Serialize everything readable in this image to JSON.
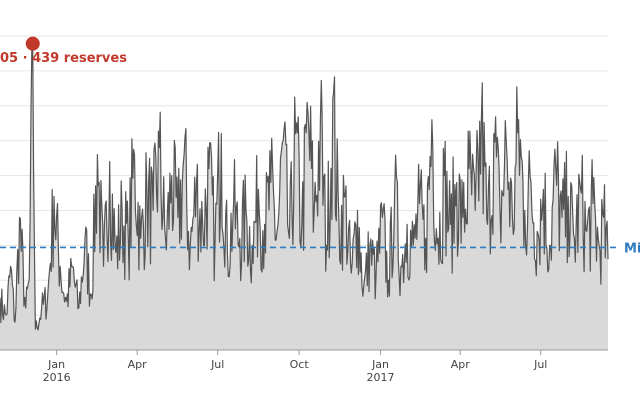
{
  "chart_data": {
    "type": "area",
    "title": "",
    "xlabel": "",
    "ylabel": "",
    "x_range": [
      "2015-10-29",
      "2017-09-15"
    ],
    "y_range": [
      0,
      450
    ],
    "grid": "horizontal",
    "colors": {
      "line": "#555555",
      "fill": "#d9d9d9",
      "grid": "#e6e6e6",
      "reference": "#2f7bbf",
      "peak": "#c0392b"
    },
    "x_ticks": [
      {
        "date": "2016-01-01",
        "label": "Jan",
        "sublabel": "2016"
      },
      {
        "date": "2016-04-01",
        "label": "Apr",
        "sublabel": ""
      },
      {
        "date": "2016-07-01",
        "label": "Jul",
        "sublabel": ""
      },
      {
        "date": "2016-10-01",
        "label": "Oct",
        "sublabel": ""
      },
      {
        "date": "2017-01-01",
        "label": "Jan",
        "sublabel": "2017"
      },
      {
        "date": "2017-04-01",
        "label": "Apr",
        "sublabel": ""
      },
      {
        "date": "2017-07-01",
        "label": "Jul",
        "sublabel": ""
      }
    ],
    "reference_line": {
      "value": 147,
      "label": "Mi"
    },
    "peak": {
      "date": "2015-12-05",
      "value": 439,
      "label": "05 · 439 reserves"
    },
    "series": [
      {
        "name": "",
        "points": [
          [
            "2015-10-29",
            75
          ],
          [
            "2015-11-05",
            50
          ],
          [
            "2015-11-10",
            120
          ],
          [
            "2015-11-15",
            40
          ],
          [
            "2015-11-20",
            190
          ],
          [
            "2015-11-27",
            60
          ],
          [
            "2015-12-01",
            100
          ],
          [
            "2015-12-05",
            439
          ],
          [
            "2015-12-08",
            30
          ],
          [
            "2015-12-15",
            60
          ],
          [
            "2015-12-22",
            80
          ],
          [
            "2015-12-29",
            220
          ],
          [
            "2016-01-05",
            120
          ],
          [
            "2016-01-12",
            70
          ],
          [
            "2016-01-19",
            120
          ],
          [
            "2016-01-26",
            60
          ],
          [
            "2016-02-02",
            160
          ],
          [
            "2016-02-09",
            80
          ],
          [
            "2016-02-16",
            280
          ],
          [
            "2016-02-23",
            120
          ],
          [
            "2016-03-01",
            270
          ],
          [
            "2016-03-08",
            140
          ],
          [
            "2016-03-15",
            200
          ],
          [
            "2016-03-22",
            160
          ],
          [
            "2016-03-29",
            280
          ],
          [
            "2016-04-05",
            160
          ],
          [
            "2016-04-12",
            230
          ],
          [
            "2016-04-19",
            200
          ],
          [
            "2016-04-26",
            290
          ],
          [
            "2016-05-03",
            160
          ],
          [
            "2016-05-10",
            250
          ],
          [
            "2016-05-17",
            190
          ],
          [
            "2016-05-24",
            280
          ],
          [
            "2016-05-31",
            150
          ],
          [
            "2016-06-07",
            240
          ],
          [
            "2016-06-14",
            180
          ],
          [
            "2016-06-21",
            260
          ],
          [
            "2016-06-28",
            160
          ],
          [
            "2016-07-05",
            310
          ],
          [
            "2016-07-12",
            140
          ],
          [
            "2016-07-19",
            210
          ],
          [
            "2016-07-26",
            160
          ],
          [
            "2016-08-02",
            200
          ],
          [
            "2016-08-09",
            150
          ],
          [
            "2016-08-16",
            230
          ],
          [
            "2016-08-23",
            180
          ],
          [
            "2016-08-30",
            240
          ],
          [
            "2016-09-06",
            170
          ],
          [
            "2016-09-13",
            300
          ],
          [
            "2016-09-20",
            160
          ],
          [
            "2016-09-27",
            310
          ],
          [
            "2016-10-04",
            180
          ],
          [
            "2016-10-11",
            340
          ],
          [
            "2016-10-18",
            200
          ],
          [
            "2016-10-25",
            330
          ],
          [
            "2016-11-01",
            150
          ],
          [
            "2016-11-08",
            360
          ],
          [
            "2016-11-15",
            180
          ],
          [
            "2016-11-22",
            220
          ],
          [
            "2016-11-29",
            110
          ],
          [
            "2016-12-06",
            200
          ],
          [
            "2016-12-13",
            90
          ],
          [
            "2016-12-20",
            150
          ],
          [
            "2016-12-27",
            110
          ],
          [
            "2017-01-03",
            190
          ],
          [
            "2017-01-10",
            100
          ],
          [
            "2017-01-17",
            230
          ],
          [
            "2017-01-24",
            120
          ],
          [
            "2017-01-31",
            180
          ],
          [
            "2017-02-07",
            150
          ],
          [
            "2017-02-14",
            210
          ],
          [
            "2017-02-21",
            160
          ],
          [
            "2017-02-28",
            330
          ],
          [
            "2017-03-07",
            160
          ],
          [
            "2017-03-14",
            250
          ],
          [
            "2017-03-21",
            180
          ],
          [
            "2017-03-28",
            240
          ],
          [
            "2017-04-04",
            190
          ],
          [
            "2017-04-11",
            260
          ],
          [
            "2017-04-18",
            200
          ],
          [
            "2017-04-25",
            330
          ],
          [
            "2017-05-02",
            180
          ],
          [
            "2017-05-09",
            310
          ],
          [
            "2017-05-16",
            200
          ],
          [
            "2017-05-23",
            300
          ],
          [
            "2017-05-30",
            190
          ],
          [
            "2017-06-06",
            330
          ],
          [
            "2017-06-13",
            200
          ],
          [
            "2017-06-20",
            240
          ],
          [
            "2017-06-27",
            170
          ],
          [
            "2017-07-04",
            230
          ],
          [
            "2017-07-11",
            150
          ],
          [
            "2017-07-18",
            260
          ],
          [
            "2017-07-25",
            190
          ],
          [
            "2017-08-01",
            220
          ],
          [
            "2017-08-08",
            160
          ],
          [
            "2017-08-15",
            230
          ],
          [
            "2017-08-22",
            170
          ],
          [
            "2017-08-29",
            210
          ],
          [
            "2017-09-05",
            150
          ],
          [
            "2017-09-10",
            190
          ],
          [
            "2017-09-15",
            130
          ]
        ]
      }
    ]
  }
}
